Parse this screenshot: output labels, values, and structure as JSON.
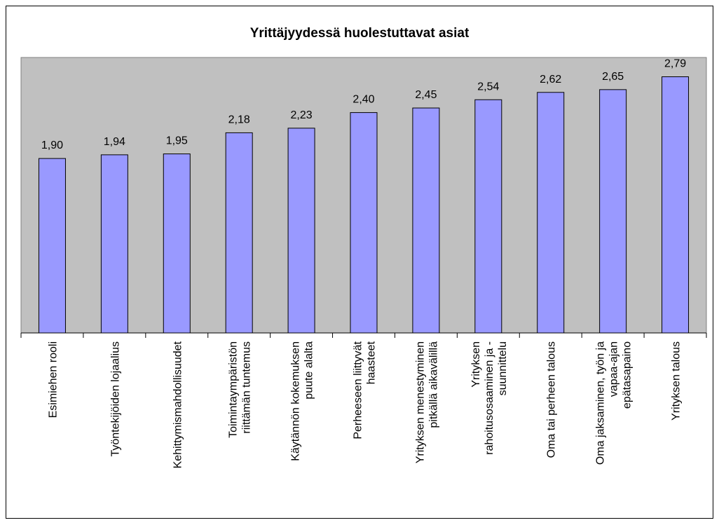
{
  "chart_data": {
    "type": "bar",
    "title": "Yrittäjyydessä huolestuttavat asiat",
    "categories": [
      [
        "Esimiehen rooli"
      ],
      [
        "Työntekijöiden lojaalius"
      ],
      [
        "Kehittymismahdollisuudet"
      ],
      [
        "Toimintaympäristön",
        "riittämän tuntemus"
      ],
      [
        "Käytännön kokemuksen",
        "puute alalta"
      ],
      [
        "Perheeseen liittyvät",
        "haasteet"
      ],
      [
        "Yrityksen menestyminen",
        "pitkällä aikavälillä"
      ],
      [
        "Yrityksen",
        "rahoitusosaaminen ja -",
        "suunnittelu"
      ],
      [
        "Oma tai perheen talous"
      ],
      [
        "Oma jaksaminen, työn ja",
        "vapaa-ajan",
        "epätasapaino"
      ],
      [
        "Yrityksen talous"
      ]
    ],
    "values": [
      1.9,
      1.94,
      1.95,
      2.18,
      2.23,
      2.4,
      2.45,
      2.54,
      2.62,
      2.65,
      2.79
    ],
    "value_labels": [
      "1,90",
      "1,94",
      "1,95",
      "2,18",
      "2,23",
      "2,40",
      "2,45",
      "2,54",
      "2,62",
      "2,65",
      "2,79"
    ],
    "color": "#9999ff",
    "plot_background": "#c0c0c0",
    "ylim": [
      0,
      3
    ]
  }
}
